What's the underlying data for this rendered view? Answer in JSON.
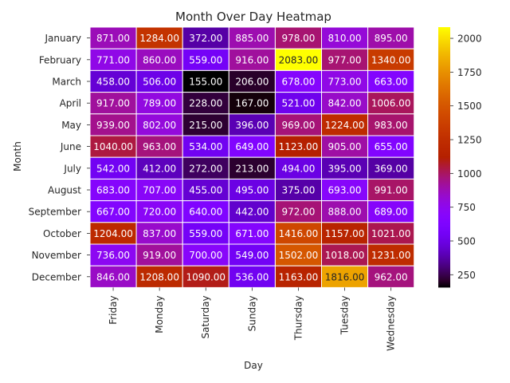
{
  "chart_data": {
    "type": "heatmap",
    "title": "Month Over Day Heatmap",
    "xlabel": "Day",
    "ylabel": "Month",
    "x_categories": [
      "Friday",
      "Monday",
      "Saturday",
      "Sunday",
      "Thursday",
      "Tuesday",
      "Wednesday"
    ],
    "y_categories": [
      "January",
      "February",
      "March",
      "April",
      "May",
      "June",
      "July",
      "August",
      "September",
      "October",
      "November",
      "December"
    ],
    "values": [
      [
        871,
        1284,
        372,
        885,
        978,
        810,
        895
      ],
      [
        771,
        860,
        559,
        916,
        2083,
        977,
        1340
      ],
      [
        458,
        506,
        155,
        206,
        678,
        773,
        663
      ],
      [
        917,
        789,
        228,
        167,
        521,
        842,
        1006
      ],
      [
        939,
        802,
        215,
        396,
        969,
        1224,
        983
      ],
      [
        1040,
        963,
        534,
        649,
        1123,
        905,
        655
      ],
      [
        542,
        412,
        272,
        213,
        494,
        395,
        369
      ],
      [
        683,
        707,
        455,
        495,
        375,
        693,
        991
      ],
      [
        667,
        720,
        640,
        442,
        972,
        888,
        689
      ],
      [
        1204,
        837,
        559,
        671,
        1416,
        1157,
        1021
      ],
      [
        736,
        919,
        700,
        549,
        1502,
        1018,
        1231
      ],
      [
        846,
        1208,
        1090,
        536,
        1163,
        1816,
        962
      ]
    ],
    "value_format": "2 decimals",
    "colormap": "gnuplot",
    "colorbar": {
      "min": 155,
      "max": 2083,
      "ticks": [
        250,
        500,
        750,
        1000,
        1250,
        1500,
        1750,
        2000
      ]
    },
    "grid": false
  }
}
